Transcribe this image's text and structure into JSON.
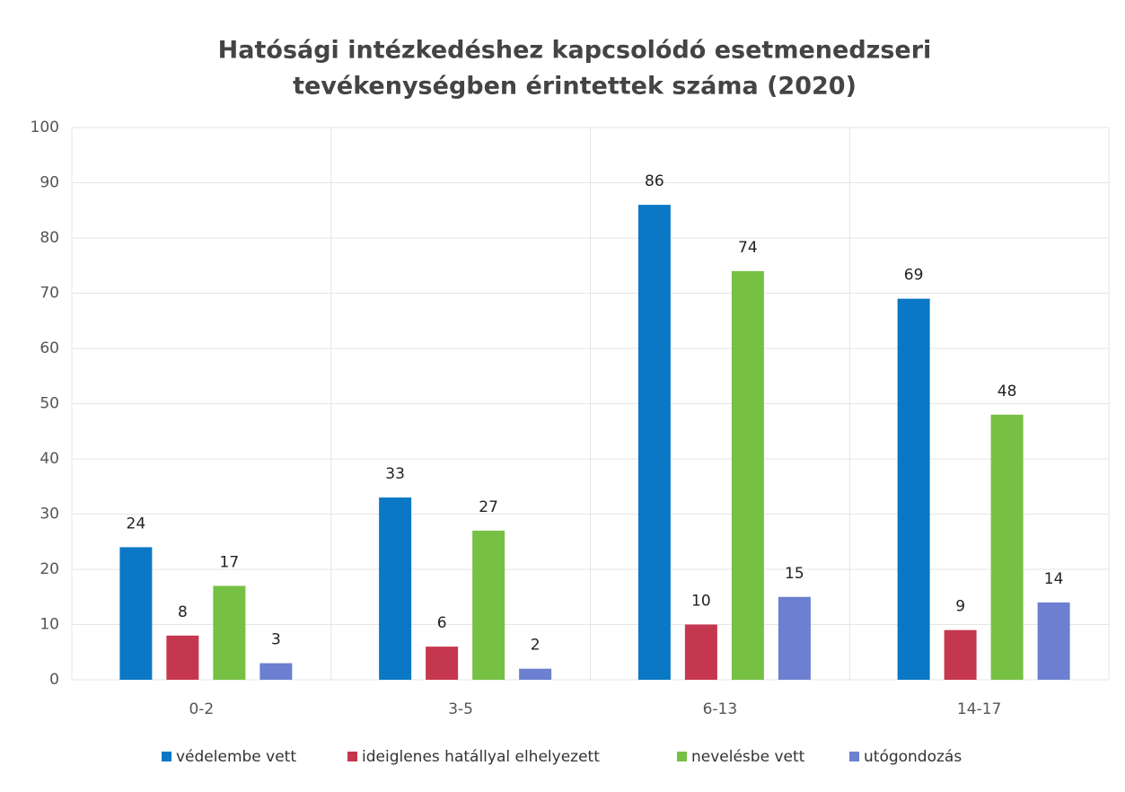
{
  "chart_data": {
    "type": "bar",
    "title": [
      "Hatósági intézkedéshez kapcsolódó esetmenedzseri",
      "tevékenységben érintettek száma (2020)"
    ],
    "categories": [
      "0-2",
      "3-5",
      "6-13",
      "14-17"
    ],
    "series": [
      {
        "name": "védelembe vett",
        "color": "#0a78c4",
        "values": [
          24,
          33,
          86,
          69
        ]
      },
      {
        "name": "ideiglenes hatállyal elhelyezett",
        "color": "#c5374e",
        "values": [
          8,
          6,
          10,
          9
        ]
      },
      {
        "name": "nevelésbe vett",
        "color": "#76c043",
        "values": [
          17,
          27,
          74,
          48
        ]
      },
      {
        "name": "utógondozás",
        "color": "#6c7fd0",
        "values": [
          3,
          2,
          15,
          14
        ]
      }
    ],
    "ylim": [
      0,
      100
    ],
    "yticks": [
      0,
      10,
      20,
      30,
      40,
      50,
      60,
      70,
      80,
      90,
      100
    ],
    "grid": true,
    "legend": "bottom"
  }
}
